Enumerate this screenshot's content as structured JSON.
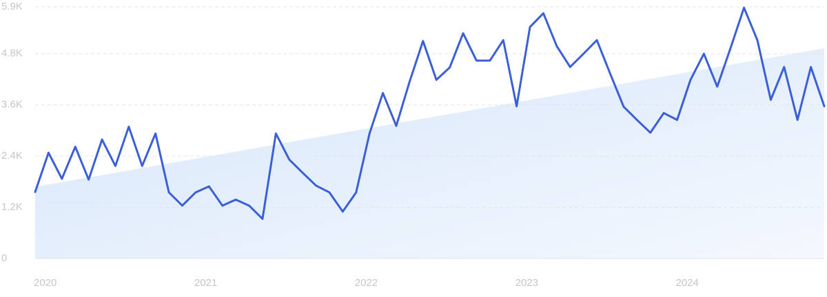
{
  "chart_data": {
    "type": "line",
    "categories": [
      "2020",
      null,
      null,
      null,
      null,
      null,
      null,
      null,
      null,
      null,
      null,
      null,
      "2021",
      null,
      null,
      null,
      null,
      null,
      null,
      null,
      null,
      null,
      null,
      null,
      "2022",
      null,
      null,
      null,
      null,
      null,
      null,
      null,
      null,
      null,
      null,
      null,
      "2023",
      null,
      null,
      null,
      null,
      null,
      null,
      null,
      null,
      null,
      null,
      null,
      "2024",
      null,
      null,
      null,
      null,
      null,
      null,
      null,
      null,
      null,
      null,
      null
    ],
    "series": [
      {
        "color": "#3a5fd8",
        "values": [
          1560,
          2480,
          1870,
          2620,
          1850,
          2790,
          2170,
          3090,
          2170,
          2930,
          1550,
          1240,
          1550,
          1690,
          1240,
          1380,
          1240,
          930,
          2930,
          2320,
          2010,
          1710,
          1550,
          1100,
          1550,
          2930,
          3880,
          3110,
          4150,
          5100,
          4190,
          4480,
          5280,
          4640,
          4640,
          5120,
          3570,
          5430,
          5750,
          4980,
          4490,
          4800,
          5120,
          4330,
          3560,
          3250,
          2950,
          3410,
          3250,
          4190,
          4800,
          4030,
          4940,
          5880,
          5120,
          3720,
          4490,
          3250,
          4490,
          3570
        ]
      }
    ],
    "trend": {
      "color": "#dbe9fb",
      "values": [
        1680,
        4930
      ]
    },
    "ylim": [
      0,
      5900
    ],
    "yticks": [
      0,
      {
        "value": 1200,
        "label": "1.2K"
      },
      {
        "value": 2400,
        "label": "2.4K"
      },
      {
        "value": 3600,
        "label": "3.6K"
      },
      {
        "value": 4800,
        "label": "4.8K"
      },
      {
        "value": 5900,
        "label": "5.9K"
      }
    ],
    "grid": true
  }
}
